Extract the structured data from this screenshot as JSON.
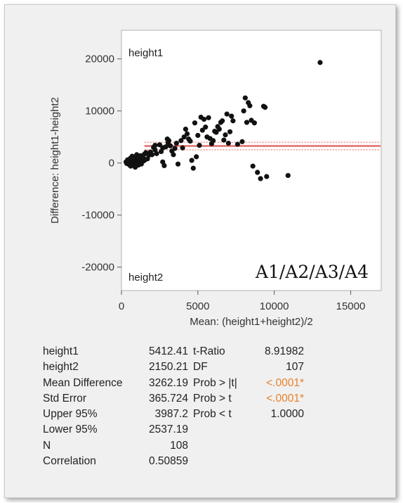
{
  "chart_data": {
    "type": "scatter",
    "xlabel": "Mean: (height1+height2)/2",
    "ylabel": "Difference: height1-height2",
    "xlim": [
      0,
      17000
    ],
    "ylim": [
      -24500,
      25500
    ],
    "x_ticks": [
      "0",
      "5000",
      "10000",
      "15000"
    ],
    "y_ticks": [
      "20000",
      "10000",
      "0",
      "-10000",
      "-20000"
    ],
    "top_label": "height1",
    "bottom_label": "height2",
    "mean_line": 3262.19,
    "upper_ci": 3987.2,
    "lower_ci": 2537.19,
    "points": [
      [
        400,
        600
      ],
      [
        450,
        -200
      ],
      [
        520,
        300
      ],
      [
        580,
        900
      ],
      [
        600,
        -600
      ],
      [
        650,
        200
      ],
      [
        700,
        1300
      ],
      [
        760,
        -300
      ],
      [
        800,
        500
      ],
      [
        850,
        1000
      ],
      [
        900,
        -800
      ],
      [
        950,
        200
      ],
      [
        1000,
        1600
      ],
      [
        1050,
        600
      ],
      [
        1100,
        -400
      ],
      [
        1150,
        900
      ],
      [
        1200,
        300
      ],
      [
        1250,
        1400
      ],
      [
        1300,
        -200
      ],
      [
        1350,
        700
      ],
      [
        1400,
        1100
      ],
      [
        1450,
        400
      ],
      [
        1500,
        1700
      ],
      [
        1600,
        2000
      ],
      [
        1700,
        800
      ],
      [
        1800,
        1500
      ],
      [
        1900,
        2100
      ],
      [
        2000,
        1600
      ],
      [
        2100,
        3000
      ],
      [
        2200,
        2500
      ],
      [
        2300,
        1800
      ],
      [
        2500,
        3500
      ],
      [
        2600,
        2200
      ],
      [
        2700,
        200
      ],
      [
        2800,
        -500
      ],
      [
        2900,
        3100
      ],
      [
        3000,
        4600
      ],
      [
        3050,
        3900
      ],
      [
        3100,
        4300
      ],
      [
        3200,
        3300
      ],
      [
        3300,
        2300
      ],
      [
        3400,
        1600
      ],
      [
        3500,
        2800
      ],
      [
        3600,
        3800
      ],
      [
        3700,
        -200
      ],
      [
        3900,
        4300
      ],
      [
        4000,
        2900
      ],
      [
        4100,
        5000
      ],
      [
        4200,
        6500
      ],
      [
        4300,
        5600
      ],
      [
        4400,
        4600
      ],
      [
        4500,
        4200
      ],
      [
        4600,
        500
      ],
      [
        4700,
        -1000
      ],
      [
        4800,
        7700
      ],
      [
        4900,
        1200
      ],
      [
        5000,
        5300
      ],
      [
        5100,
        3400
      ],
      [
        5200,
        8800
      ],
      [
        5300,
        6300
      ],
      [
        5400,
        8400
      ],
      [
        5500,
        6900
      ],
      [
        5600,
        5000
      ],
      [
        5700,
        8700
      ],
      [
        5800,
        4700
      ],
      [
        5900,
        3700
      ],
      [
        6000,
        4300
      ],
      [
        6100,
        6100
      ],
      [
        6200,
        5900
      ],
      [
        6300,
        7000
      ],
      [
        6400,
        6500
      ],
      [
        6500,
        7800
      ],
      [
        6600,
        8100
      ],
      [
        6700,
        4400
      ],
      [
        6800,
        5400
      ],
      [
        6900,
        9400
      ],
      [
        7000,
        3800
      ],
      [
        7100,
        6000
      ],
      [
        7200,
        9000
      ],
      [
        7300,
        8100
      ],
      [
        7600,
        3600
      ],
      [
        7900,
        4100
      ],
      [
        8000,
        10000
      ],
      [
        8100,
        12500
      ],
      [
        8200,
        7800
      ],
      [
        8300,
        11600
      ],
      [
        8400,
        11000
      ],
      [
        8500,
        8200
      ],
      [
        8600,
        -600
      ],
      [
        8700,
        7700
      ],
      [
        8900,
        -1800
      ],
      [
        9100,
        -3000
      ],
      [
        9300,
        10900
      ],
      [
        9400,
        10700
      ],
      [
        9500,
        -2600
      ],
      [
        10900,
        -2400
      ],
      [
        13000,
        19300
      ],
      [
        350,
        -100
      ],
      [
        300,
        200
      ],
      [
        450,
        400
      ],
      [
        550,
        -400
      ],
      [
        650,
        700
      ],
      [
        750,
        1000
      ],
      [
        850,
        300
      ],
      [
        1000,
        -100
      ],
      [
        1500,
        500
      ],
      [
        2200,
        3400
      ],
      [
        2700,
        2900
      ]
    ]
  },
  "stats_left": [
    {
      "label": "height1",
      "value": "5412.41"
    },
    {
      "label": "height2",
      "value": "2150.21"
    },
    {
      "label": "Mean Difference",
      "value": "3262.19"
    },
    {
      "label": "Std Error",
      "value": "365.724"
    },
    {
      "label": "Upper 95%",
      "value": "3987.2"
    },
    {
      "label": "Lower 95%",
      "value": "2537.19"
    },
    {
      "label": "N",
      "value": "108"
    },
    {
      "label": "Correlation",
      "value": "0.50859"
    }
  ],
  "stats_right": [
    {
      "label": "t-Ratio",
      "value": "8.91982",
      "highlight": false
    },
    {
      "label": "DF",
      "value": "107",
      "highlight": false
    },
    {
      "label": "Prob > |t|",
      "value": "<.0001*",
      "highlight": true
    },
    {
      "label": "Prob > t",
      "value": "<.0001*",
      "highlight": true
    },
    {
      "label": "Prob < t",
      "value": "1.0000",
      "highlight": false
    }
  ],
  "overlay_text": "A1/A2/A3/A4",
  "colors": {
    "point": "#111111",
    "mean_line": "#e46b6b",
    "ci_line": "#e46b6b",
    "significant": "#e8822a"
  }
}
